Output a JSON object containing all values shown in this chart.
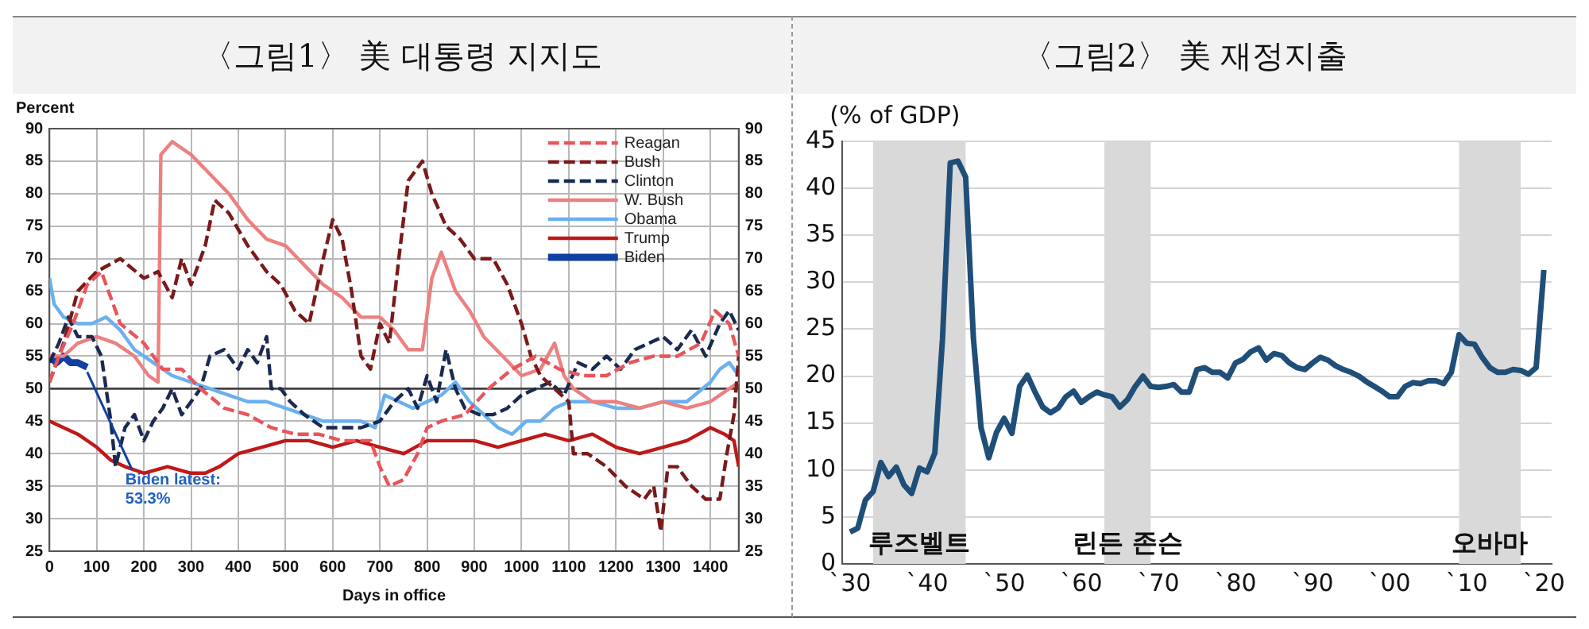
{
  "chart_data": [
    {
      "type": "line",
      "title": "〈그림1〉 美 대통령 지지도",
      "ylabel": "Percent",
      "xlabel": "Days in office",
      "xlim": [
        0,
        1460
      ],
      "xticks": [
        0,
        100,
        200,
        300,
        400,
        500,
        600,
        700,
        800,
        900,
        1000,
        1100,
        1200,
        1300,
        1400
      ],
      "ylim": [
        25,
        90
      ],
      "yticks": [
        25,
        30,
        35,
        40,
        45,
        50,
        55,
        60,
        65,
        70,
        75,
        80,
        85,
        90
      ],
      "y2lim": [
        25,
        90
      ],
      "y2ticks": [
        25,
        30,
        35,
        40,
        45,
        50,
        55,
        60,
        65,
        70,
        75,
        80,
        85,
        90
      ],
      "grid": true,
      "legend": "top right",
      "ref_lines": [
        {
          "axis": "y",
          "value": 50,
          "color": "#404040"
        }
      ],
      "annotations": [
        {
          "text": "Biden latest:\n53.3%",
          "x": 80,
          "y": 53.3
        }
      ],
      "series": [
        {
          "name": "Reagan",
          "color": "#e8555a",
          "line_style": "dashed",
          "x": [
            0,
            20,
            50,
            80,
            110,
            150,
            200,
            240,
            280,
            320,
            370,
            420,
            470,
            520,
            570,
            620,
            680,
            700,
            720,
            750,
            780,
            800,
            830,
            880,
            930,
            980,
            1030,
            1080,
            1130,
            1180,
            1230,
            1280,
            1330,
            1380,
            1410,
            1440,
            1460
          ],
          "values": [
            51,
            55,
            60,
            66,
            68,
            60,
            57,
            53,
            53,
            50,
            47,
            46,
            44,
            43,
            43,
            42,
            42,
            38,
            35,
            36,
            40,
            44,
            45,
            46,
            50,
            53,
            55,
            53,
            52,
            52,
            54,
            55,
            55,
            57,
            62,
            60,
            55
          ]
        },
        {
          "name": "Bush",
          "color": "#7a1a1a",
          "line_style": "dashed",
          "x": [
            0,
            30,
            60,
            100,
            150,
            200,
            230,
            260,
            280,
            300,
            330,
            350,
            380,
            420,
            460,
            490,
            520,
            550,
            580,
            600,
            620,
            640,
            660,
            680,
            700,
            720,
            740,
            760,
            790,
            810,
            840,
            870,
            900,
            940,
            970,
            1000,
            1020,
            1040,
            1070,
            1100,
            1110,
            1140,
            1180,
            1220,
            1260,
            1280,
            1295,
            1310,
            1330,
            1360,
            1390,
            1420,
            1435,
            1450,
            1460
          ],
          "values": [
            51,
            57,
            65,
            68,
            70,
            67,
            68,
            64,
            70,
            66,
            72,
            79,
            77,
            72,
            68,
            66,
            62,
            60,
            70,
            76,
            73,
            65,
            55,
            53,
            60,
            57,
            70,
            82,
            85,
            80,
            75,
            73,
            70,
            70,
            66,
            60,
            55,
            52,
            50,
            48,
            40,
            40,
            38,
            35,
            33,
            35,
            28,
            38,
            38,
            35,
            33,
            33,
            40,
            46,
            55
          ]
        },
        {
          "name": "Clinton",
          "color": "#1a2a50",
          "line_style": "dashed",
          "x": [
            0,
            20,
            40,
            60,
            90,
            110,
            130,
            140,
            160,
            180,
            200,
            220,
            240,
            260,
            280,
            300,
            320,
            340,
            370,
            400,
            420,
            440,
            460,
            470,
            490,
            510,
            540,
            580,
            620,
            660,
            700,
            730,
            760,
            780,
            800,
            820,
            840,
            860,
            880,
            910,
            940,
            970,
            1000,
            1030,
            1060,
            1090,
            1120,
            1150,
            1180,
            1210,
            1240,
            1270,
            1300,
            1330,
            1360,
            1390,
            1420,
            1440,
            1460
          ],
          "values": [
            54,
            57,
            61,
            58,
            58,
            55,
            45,
            38,
            44,
            46,
            42,
            45,
            47,
            50,
            46,
            48,
            50,
            55,
            56,
            53,
            56,
            54,
            58,
            50,
            50,
            48,
            46,
            44,
            44,
            44,
            45,
            48,
            50,
            47,
            52,
            48,
            56,
            50,
            47,
            46,
            46,
            47,
            49,
            50,
            51,
            49,
            54,
            53,
            55,
            53,
            56,
            57,
            58,
            56,
            59,
            55,
            60,
            62,
            59
          ]
        },
        {
          "name": "W. Bush",
          "color": "#ec8080",
          "line_style": "solid",
          "x": [
            0,
            30,
            60,
            100,
            140,
            180,
            210,
            230,
            236,
            260,
            300,
            340,
            380,
            420,
            460,
            500,
            540,
            580,
            620,
            660,
            700,
            730,
            760,
            790,
            810,
            830,
            860,
            890,
            920,
            960,
            1000,
            1040,
            1070,
            1090,
            1110,
            1150,
            1200,
            1250,
            1300,
            1350,
            1400,
            1440,
            1460
          ],
          "values": [
            55,
            55,
            57,
            58,
            57,
            55,
            52,
            51,
            86,
            88,
            86,
            83,
            80,
            76,
            73,
            72,
            69,
            66,
            64,
            61,
            61,
            59,
            56,
            56,
            67,
            71,
            65,
            62,
            58,
            55,
            52,
            53,
            57,
            52,
            50,
            48,
            48,
            47,
            48,
            47,
            48,
            50,
            51
          ]
        },
        {
          "name": "Obama",
          "color": "#6ab0f0",
          "line_style": "solid",
          "x": [
            0,
            10,
            30,
            60,
            90,
            120,
            150,
            180,
            220,
            260,
            300,
            340,
            380,
            420,
            460,
            500,
            540,
            580,
            620,
            660,
            690,
            710,
            740,
            770,
            800,
            830,
            860,
            890,
            920,
            950,
            980,
            1010,
            1040,
            1070,
            1100,
            1150,
            1200,
            1250,
            1300,
            1350,
            1400,
            1420,
            1440,
            1460
          ],
          "values": [
            67,
            63,
            61,
            60,
            60,
            61,
            59,
            56,
            54,
            52,
            51,
            50,
            49,
            48,
            48,
            47,
            46,
            45,
            45,
            45,
            44,
            49,
            48,
            47,
            48,
            49,
            51,
            48,
            46,
            44,
            43,
            45,
            45,
            47,
            48,
            48,
            47,
            47,
            48,
            48,
            51,
            53,
            54,
            52
          ]
        },
        {
          "name": "Trump",
          "color": "#c01818",
          "line_style": "solid",
          "x": [
            0,
            30,
            60,
            100,
            130,
            160,
            200,
            250,
            300,
            330,
            360,
            400,
            450,
            500,
            550,
            600,
            650,
            700,
            750,
            800,
            850,
            900,
            950,
            1000,
            1050,
            1100,
            1150,
            1200,
            1250,
            1300,
            1350,
            1400,
            1430,
            1450,
            1460
          ],
          "values": [
            45,
            44,
            43,
            41,
            39,
            38,
            37,
            38,
            37,
            37,
            38,
            40,
            41,
            42,
            42,
            41,
            42,
            41,
            40,
            42,
            42,
            42,
            41,
            42,
            43,
            42,
            43,
            41,
            40,
            41,
            42,
            44,
            43,
            42,
            38
          ]
        },
        {
          "name": "Biden",
          "color": "#1040a0",
          "line_style": "solid",
          "x": [
            0,
            15,
            30,
            45,
            60,
            80
          ],
          "values": [
            55,
            54,
            55,
            54,
            54,
            53.3
          ]
        }
      ]
    },
    {
      "type": "line",
      "title": "〈그림2〉 美 재정지출",
      "ylabel": "(% of GDP)",
      "xlim": [
        "1929",
        "2021"
      ],
      "xticks": [
        {
          "value": "1930",
          "label": "`30"
        },
        {
          "value": "1940",
          "label": "`40"
        },
        {
          "value": "1950",
          "label": "`50"
        },
        {
          "value": "1960",
          "label": "`60"
        },
        {
          "value": "1970",
          "label": "`70"
        },
        {
          "value": "1980",
          "label": "`80"
        },
        {
          "value": "1990",
          "label": "`90"
        },
        {
          "value": "2000",
          "label": "`00"
        },
        {
          "value": "2010",
          "label": "`10"
        },
        {
          "value": "2020",
          "label": "`20"
        }
      ],
      "ylim": [
        0,
        45
      ],
      "yticks": [
        0,
        5,
        10,
        15,
        20,
        25,
        30,
        35,
        40,
        45
      ],
      "grid": "y",
      "bands": [
        {
          "axis": "x",
          "from": "1933",
          "to": "1945",
          "label": "루즈벨트",
          "color": "#d9d9d9"
        },
        {
          "axis": "x",
          "from": "1963",
          "to": "1969",
          "label": "린든 존슨",
          "color": "#d9d9d9"
        },
        {
          "axis": "x",
          "from": "2009",
          "to": "2017",
          "label": "오바마",
          "color": "#d9d9d9"
        }
      ],
      "series": [
        {
          "color": "#1f4e79",
          "x": [
            "1930",
            "1931",
            "1932",
            "1933",
            "1934",
            "1935",
            "1936",
            "1937",
            "1938",
            "1939",
            "1940",
            "1941",
            "1942",
            "1943",
            "1944",
            "1945",
            "1946",
            "1947",
            "1948",
            "1949",
            "1950",
            "1951",
            "1952",
            "1953",
            "1954",
            "1955",
            "1956",
            "1957",
            "1958",
            "1959",
            "1960",
            "1961",
            "1962",
            "1963",
            "1964",
            "1965",
            "1966",
            "1967",
            "1968",
            "1969",
            "1970",
            "1971",
            "1972",
            "1973",
            "1974",
            "1975",
            "1976",
            "1977",
            "1978",
            "1979",
            "1980",
            "1981",
            "1982",
            "1983",
            "1984",
            "1985",
            "1986",
            "1987",
            "1988",
            "1989",
            "1990",
            "1991",
            "1992",
            "1993",
            "1994",
            "1995",
            "1996",
            "1997",
            "1998",
            "1999",
            "2000",
            "2001",
            "2002",
            "2003",
            "2004",
            "2005",
            "2006",
            "2007",
            "2008",
            "2009",
            "2010",
            "2011",
            "2012",
            "2013",
            "2014",
            "2015",
            "2016",
            "2017",
            "2018",
            "2019",
            "2020"
          ],
          "values": [
            3.4,
            3.8,
            6.8,
            7.7,
            10.8,
            9.3,
            10.3,
            8.4,
            7.5,
            10.2,
            9.8,
            11.8,
            24,
            42.7,
            42.9,
            41.2,
            24.1,
            14.5,
            11.3,
            14,
            15.5,
            13.9,
            18.9,
            20.1,
            18.3,
            16.7,
            16.1,
            16.6,
            17.8,
            18.4,
            17.2,
            17.8,
            18.3,
            18,
            17.8,
            16.7,
            17.5,
            18.9,
            20,
            18.9,
            18.8,
            18.9,
            19.1,
            18.3,
            18.3,
            20.7,
            20.9,
            20.4,
            20.4,
            19.8,
            21.4,
            21.8,
            22.6,
            23,
            21.7,
            22.4,
            22.2,
            21.4,
            20.9,
            20.7,
            21.4,
            22,
            21.7,
            21.1,
            20.7,
            20.4,
            20,
            19.4,
            18.9,
            18.4,
            17.8,
            17.8,
            18.9,
            19.3,
            19.2,
            19.5,
            19.5,
            19.2,
            20.4,
            24.4,
            23.5,
            23.4,
            22,
            20.9,
            20.4,
            20.4,
            20.7,
            20.6,
            20.2,
            20.9,
            31.3
          ]
        }
      ]
    }
  ]
}
